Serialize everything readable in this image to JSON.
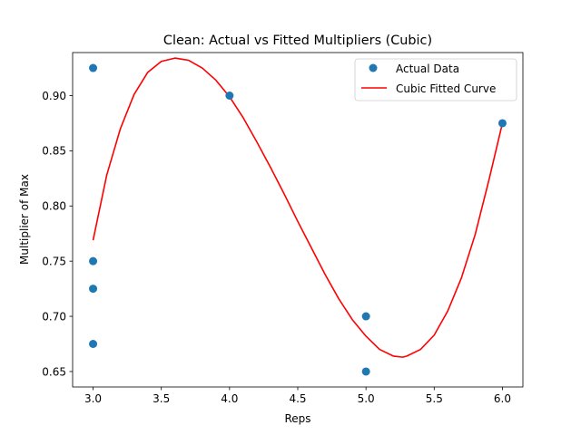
{
  "chart_data": {
    "type": "scatter",
    "title": "Clean: Actual vs Fitted Multipliers (Cubic)",
    "xlabel": "Reps",
    "ylabel": "Multiplier of Max",
    "xlim": [
      2.85,
      6.15
    ],
    "ylim": [
      0.636,
      0.939
    ],
    "xticks": [
      3.0,
      3.5,
      4.0,
      4.5,
      5.0,
      5.5,
      6.0
    ],
    "yticks": [
      0.65,
      0.7,
      0.75,
      0.8,
      0.85,
      0.9
    ],
    "xtick_labels": [
      "3.0",
      "3.5",
      "4.0",
      "4.5",
      "5.0",
      "5.5",
      "6.0"
    ],
    "ytick_labels": [
      "0.65",
      "0.70",
      "0.75",
      "0.80",
      "0.85",
      "0.90"
    ],
    "grid": false,
    "legend_position": "top-right",
    "series": [
      {
        "name": "Actual Data",
        "kind": "scatter",
        "color": "#1f77b4",
        "x": [
          3.0,
          3.0,
          3.0,
          3.0,
          4.0,
          5.0,
          5.0,
          6.0
        ],
        "y": [
          0.925,
          0.75,
          0.725,
          0.675,
          0.9,
          0.7,
          0.65,
          0.875
        ]
      },
      {
        "name": "Cubic Fitted Curve",
        "kind": "line",
        "color": "#ff0000",
        "x": [
          3.0,
          3.1,
          3.2,
          3.3,
          3.4,
          3.5,
          3.6,
          3.65,
          3.7,
          3.8,
          3.9,
          4.0,
          4.1,
          4.2,
          4.3,
          4.4,
          4.5,
          4.6,
          4.7,
          4.8,
          4.9,
          5.0,
          5.1,
          5.2,
          5.27,
          5.3,
          5.4,
          5.5,
          5.6,
          5.7,
          5.8,
          5.9,
          6.0
        ],
        "y": [
          0.769,
          0.828,
          0.87,
          0.901,
          0.921,
          0.931,
          0.934,
          0.933,
          0.932,
          0.925,
          0.914,
          0.899,
          0.88,
          0.858,
          0.835,
          0.811,
          0.786,
          0.762,
          0.738,
          0.716,
          0.697,
          0.682,
          0.67,
          0.664,
          0.663,
          0.664,
          0.67,
          0.683,
          0.705,
          0.735,
          0.774,
          0.823,
          0.875
        ]
      }
    ]
  }
}
